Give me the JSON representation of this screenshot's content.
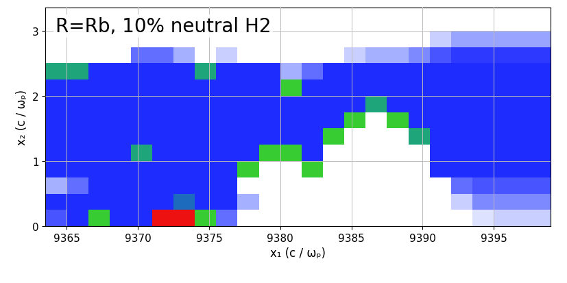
{
  "chart_data": {
    "type": "heatmap",
    "title": "R=Rb, 10% neutral H2",
    "x_label": "x₁ (c / ωₚ)",
    "y_label": "x₂ (c / ωₚ)",
    "xlim": [
      9363.5,
      9399
    ],
    "ylim": [
      0,
      3.35
    ],
    "xticks": [
      9365,
      9370,
      9375,
      9380,
      9385,
      9390,
      9395
    ],
    "yticks": [
      0,
      1,
      2,
      3
    ],
    "grid": true,
    "zlim": [
      0,
      4
    ],
    "x_edges": [
      9363.5,
      9365,
      9366.5,
      9368,
      9369.5,
      9371,
      9372.5,
      9374,
      9375.5,
      9377,
      9378.5,
      9380,
      9381.5,
      9383,
      9384.5,
      9386,
      9387.5,
      9389,
      9390.5,
      9392,
      9393.5,
      9395,
      9396.5,
      9398,
      9399.5
    ],
    "y_edges": [
      0,
      0.25,
      0.5,
      0.75,
      1.0,
      1.25,
      1.5,
      1.75,
      2.0,
      2.25,
      2.5,
      2.75,
      3.0,
      3.25,
      3.5
    ],
    "cells": [
      [
        1.2,
        1.5,
        3,
        1.5,
        1.5,
        4,
        4,
        3,
        1.0,
        0,
        0,
        0,
        0,
        0,
        0,
        0,
        0,
        0,
        0,
        0,
        0.2,
        0.3,
        0.3,
        0.3
      ],
      [
        1.5,
        1.5,
        1.5,
        1.5,
        1.5,
        1.5,
        2,
        1.5,
        1.5,
        0.5,
        0,
        0,
        0,
        0,
        0,
        0,
        0,
        0,
        0,
        0.3,
        0.8,
        0.8,
        0.8,
        0.8
      ],
      [
        0.5,
        1,
        1.5,
        1.5,
        1.5,
        1.5,
        1.5,
        1.5,
        1.5,
        0,
        0,
        0,
        0,
        0,
        0,
        0,
        0,
        0,
        0,
        1.0,
        1.2,
        1.2,
        1.2,
        1.2
      ],
      [
        1.5,
        1.5,
        1.5,
        1.5,
        1.5,
        1.5,
        1.5,
        1.5,
        1.5,
        3,
        0,
        0,
        3,
        0,
        0,
        0,
        0,
        0,
        1.5,
        1.5,
        1.5,
        1.5,
        1.5,
        1.5
      ],
      [
        1.5,
        1.5,
        1.5,
        1.5,
        2.5,
        1.5,
        1.5,
        1.5,
        1.5,
        1.5,
        3,
        3,
        1.5,
        0,
        0,
        0,
        0,
        0,
        1.5,
        1.5,
        1.5,
        1.5,
        1.5,
        1.5
      ],
      [
        1.5,
        1.5,
        1.5,
        1.5,
        1.5,
        1.5,
        1.5,
        1.5,
        1.5,
        1.5,
        1.5,
        1.5,
        1.5,
        3,
        0,
        0,
        0,
        2.5,
        1.5,
        1.5,
        1.5,
        1.5,
        1.5,
        1.5
      ],
      [
        1.5,
        1.5,
        1.5,
        1.5,
        1.5,
        1.5,
        1.5,
        1.5,
        1.5,
        1.5,
        1.5,
        1.5,
        1.5,
        1.5,
        3,
        0,
        3,
        1.5,
        1.5,
        1.5,
        1.5,
        1.5,
        1.5,
        1.5
      ],
      [
        1.5,
        1.5,
        1.5,
        1.5,
        1.5,
        1.5,
        1.5,
        1.5,
        1.5,
        1.5,
        1.5,
        1.5,
        1.5,
        1.5,
        1.5,
        2.5,
        1.5,
        1.5,
        1.5,
        1.5,
        1.5,
        1.5,
        1.5,
        1.5
      ],
      [
        1.5,
        1.5,
        1.5,
        1.5,
        1.5,
        1.5,
        1.5,
        1.5,
        1.5,
        1.5,
        1.5,
        3,
        1.5,
        1.5,
        1.5,
        1.5,
        1.5,
        1.5,
        1.5,
        1.5,
        1.5,
        1.5,
        1.5,
        1.5
      ],
      [
        2.5,
        2.5,
        1.5,
        1.5,
        1.5,
        1.5,
        1.5,
        2.5,
        1.5,
        1.5,
        1.5,
        0.5,
        1.0,
        1.5,
        1.5,
        1.5,
        1.5,
        1.5,
        1.5,
        1.5,
        1.5,
        1.5,
        1.5,
        1.5
      ],
      [
        0,
        0,
        0,
        0,
        1.0,
        1.0,
        0.5,
        0,
        0.3,
        0,
        0,
        0,
        0,
        0,
        0.3,
        0.5,
        0.5,
        0.8,
        1.2,
        1.4,
        1.4,
        1.4,
        1.4,
        1.4
      ],
      [
        0,
        0,
        0,
        0,
        0,
        0,
        0,
        0,
        0,
        0,
        0,
        0,
        0,
        0,
        0,
        0,
        0,
        0,
        0.3,
        0.6,
        0.6,
        0.6,
        0.6,
        0.6
      ],
      [
        0,
        0,
        0,
        0,
        0,
        0,
        0,
        0,
        0,
        0,
        0,
        0,
        0,
        0,
        0,
        0,
        0,
        0,
        0,
        0,
        0,
        0,
        0,
        0
      ],
      [
        0,
        0,
        0,
        0,
        0,
        0,
        0,
        0,
        0,
        0,
        0,
        0,
        0,
        0,
        0,
        0,
        0,
        0,
        0,
        0,
        0,
        0,
        0,
        0
      ]
    ]
  }
}
